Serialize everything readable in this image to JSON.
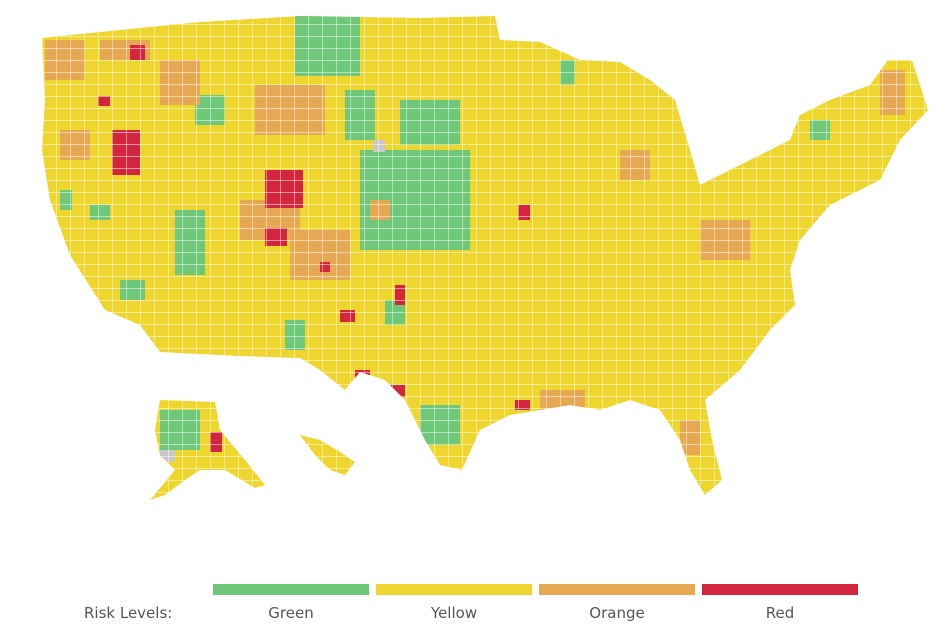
{
  "legend": {
    "title": "Risk Levels:",
    "levels": [
      {
        "label": "Green",
        "color": "#6fc77a"
      },
      {
        "label": "Yellow",
        "color": "#eed62f"
      },
      {
        "label": "Orange",
        "color": "#e6a853"
      },
      {
        "label": "Red",
        "color": "#d4253f"
      }
    ],
    "no_data_color": "#c8c8c8"
  }
}
